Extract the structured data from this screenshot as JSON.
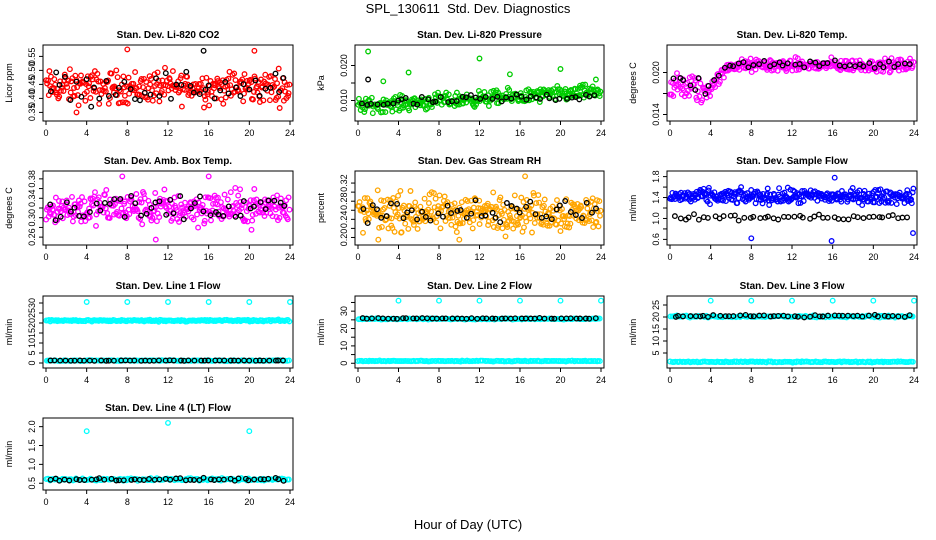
{
  "title": "SPL_130611  Std. Dev. Diagnostics",
  "xlabel": "Hour of Day (UTC)",
  "colors": {
    "red": "#ff0000",
    "green": "#00cc00",
    "magenta": "#ff00ff",
    "orange": "#ffa500",
    "blue": "#0000ff",
    "cyan": "#00ffff",
    "black": "#000000"
  },
  "chart_data": [
    {
      "type": "scatter",
      "title": "Stan. Dev. Li-820 CO2",
      "ylabel": "Licor ppm",
      "xlim": [
        0,
        24
      ],
      "ylim": [
        0.33,
        0.58
      ],
      "xticks": [
        0,
        4,
        8,
        12,
        16,
        20,
        24
      ],
      "yticks": [
        0.35,
        0.4,
        0.45,
        0.5,
        0.55
      ],
      "ytick_labels": [
        "0.35",
        "0.40",
        "0.45",
        "0.50",
        "0.55"
      ],
      "series": [
        {
          "color": "red",
          "points": 300,
          "x_range": [
            0,
            24
          ],
          "y_center": 0.44,
          "y_spread": 0.05,
          "outliers": [
            [
              8.0,
              0.575
            ],
            [
              20.5,
              0.57
            ],
            [
              3.0,
              0.35
            ]
          ]
        },
        {
          "color": "black",
          "points": 48,
          "x_range": [
            0.3,
            23.8
          ],
          "y_center": 0.44,
          "y_spread": 0.05,
          "outliers": [
            [
              15.5,
              0.57
            ]
          ]
        }
      ]
    },
    {
      "type": "scatter",
      "title": "Stan. Dev. Li-820 Pressure",
      "ylabel": "kPa",
      "xlim": [
        0,
        24
      ],
      "ylim": [
        0.005,
        0.025
      ],
      "xticks": [
        0,
        4,
        8,
        12,
        16,
        20,
        24
      ],
      "yticks": [
        0.01,
        0.015,
        0.02
      ],
      "ytick_labels": [
        "0.010",
        "",
        "0.020"
      ],
      "series": [
        {
          "color": "green",
          "points": 320,
          "x_range": [
            0,
            24
          ],
          "y_center_start": 0.0085,
          "y_center_end": 0.0125,
          "y_spread": 0.0018,
          "outliers": [
            [
              1.0,
              0.024
            ],
            [
              2.5,
              0.0155
            ],
            [
              5.0,
              0.018
            ],
            [
              12.0,
              0.022
            ],
            [
              15.0,
              0.0175
            ],
            [
              20.0,
              0.019
            ],
            [
              23.5,
              0.016
            ]
          ]
        },
        {
          "color": "black",
          "points": 48,
          "x_range": [
            0.3,
            23.8
          ],
          "y_center_start": 0.009,
          "y_center_end": 0.0115,
          "y_spread": 0.0012,
          "outliers": [
            [
              1.0,
              0.016
            ]
          ]
        }
      ]
    },
    {
      "type": "scatter",
      "title": "Stan. Dev. Li-820 Temp.",
      "ylabel": "degrees C",
      "xlim": [
        0,
        24
      ],
      "ylim": [
        0.0135,
        0.0235
      ],
      "xticks": [
        0,
        4,
        8,
        12,
        16,
        20,
        24
      ],
      "yticks": [
        0.014,
        0.017,
        0.02
      ],
      "ytick_labels": [
        "0.014",
        "",
        "0.020"
      ],
      "series": [
        {
          "color": "magenta",
          "points": 300,
          "x_range": [
            0,
            24
          ],
          "profile": "rise",
          "y_low": 0.0165,
          "y_high": 0.021,
          "y_spread": 0.0008
        },
        {
          "color": "black",
          "points": 48,
          "x_range": [
            0.3,
            23.8
          ],
          "profile": "rise",
          "y_low": 0.0175,
          "y_high": 0.0212,
          "y_spread": 0.0005
        }
      ]
    },
    {
      "type": "scatter",
      "title": "Stan. Dev. Amb. Box Temp.",
      "ylabel": "degrees C",
      "xlim": [
        0,
        24
      ],
      "ylim": [
        0.25,
        0.39
      ],
      "xticks": [
        0,
        4,
        8,
        12,
        16,
        20,
        24
      ],
      "yticks": [
        0.26,
        0.28,
        0.3,
        0.32,
        0.34,
        0.36,
        0.38
      ],
      "ytick_labels": [
        "0.26",
        "",
        "0.30",
        "",
        "0.34",
        "",
        "0.38"
      ],
      "series": [
        {
          "color": "magenta",
          "points": 320,
          "x_range": [
            0,
            24
          ],
          "y_center": 0.32,
          "y_spread": 0.03,
          "outliers": [
            [
              10.8,
              0.255
            ],
            [
              7.5,
              0.385
            ],
            [
              16.0,
              0.385
            ]
          ]
        },
        {
          "color": "black",
          "points": 48,
          "x_range": [
            0.3,
            23.8
          ],
          "y_center": 0.322,
          "y_spread": 0.025
        }
      ]
    },
    {
      "type": "scatter",
      "title": "Stan. Dev. Gas Stream RH",
      "ylabel": "percent",
      "xlim": [
        0,
        24
      ],
      "ylim": [
        0.19,
        0.34
      ],
      "xticks": [
        0,
        4,
        8,
        12,
        16,
        20,
        24
      ],
      "yticks": [
        0.2,
        0.22,
        0.24,
        0.26,
        0.28,
        0.3,
        0.32
      ],
      "ytick_labels": [
        "0.20",
        "",
        "0.24",
        "",
        "0.28",
        "",
        "0.32"
      ],
      "series": [
        {
          "color": "orange",
          "points": 340,
          "x_range": [
            0,
            24
          ],
          "y_center": 0.255,
          "y_spread": 0.035,
          "outliers": [
            [
              16.5,
              0.335
            ],
            [
              2.0,
              0.195
            ],
            [
              10.0,
              0.195
            ]
          ]
        },
        {
          "color": "black",
          "points": 48,
          "x_range": [
            0.3,
            23.8
          ],
          "y_center": 0.258,
          "y_spread": 0.02
        }
      ]
    },
    {
      "type": "scatter",
      "title": "Stan. Dev. Sample Flow",
      "ylabel": "ml/min",
      "xlim": [
        0,
        24
      ],
      "ylim": [
        0.55,
        1.85
      ],
      "xticks": [
        0,
        4,
        8,
        12,
        16,
        20,
        24
      ],
      "yticks": [
        0.6,
        0.8,
        1.0,
        1.2,
        1.4,
        1.6,
        1.8
      ],
      "ytick_labels": [
        "0.6",
        "",
        "1.0",
        "",
        "1.4",
        "",
        "1.8"
      ],
      "series": [
        {
          "color": "blue",
          "points": 320,
          "x_range": [
            0,
            24
          ],
          "y_center": 1.42,
          "y_spread": 0.12,
          "outliers": [
            [
              8.0,
              0.62
            ],
            [
              15.9,
              0.57
            ],
            [
              23.9,
              0.72
            ],
            [
              16.2,
              1.78
            ]
          ]
        },
        {
          "color": "black",
          "points": 48,
          "x_range": [
            0.3,
            23.8
          ],
          "y_center": 1.02,
          "y_spread": 0.05
        }
      ]
    },
    {
      "type": "scatter",
      "title": "Stan. Dev. Line 1 Flow",
      "ylabel": "ml/min",
      "xlim": [
        0,
        24
      ],
      "ylim": [
        -1,
        32
      ],
      "xticks": [
        0,
        4,
        8,
        12,
        16,
        20,
        24
      ],
      "yticks": [
        0,
        5,
        10,
        15,
        20,
        25,
        30
      ],
      "ytick_labels": [
        "0",
        "5",
        "10",
        "15",
        "20",
        "25",
        "30"
      ],
      "series": [
        {
          "color": "cyan",
          "points": 200,
          "x_range": [
            0,
            24
          ],
          "y_center": 21.2,
          "y_spread": 0.4,
          "outliers": [
            [
              4,
              30.5
            ],
            [
              8,
              30.5
            ],
            [
              12,
              30.5
            ],
            [
              16,
              30.5
            ],
            [
              20,
              30.5
            ],
            [
              24,
              30.5
            ]
          ]
        },
        {
          "color": "cyan",
          "points": 150,
          "x_range": [
            0,
            24
          ],
          "y_center": 1.2,
          "y_spread": 0.2
        },
        {
          "color": "black",
          "points": 48,
          "x_range": [
            0.3,
            23.8
          ],
          "y_center": 1.2,
          "y_spread": 0.1
        }
      ]
    },
    {
      "type": "scatter",
      "title": "Stan. Dev. Line 2 Flow",
      "ylabel": "ml/min",
      "xlim": [
        0,
        24
      ],
      "ylim": [
        -1,
        37
      ],
      "xticks": [
        0,
        4,
        8,
        12,
        16,
        20,
        24
      ],
      "yticks": [
        0,
        5,
        10,
        15,
        20,
        25,
        30,
        35
      ],
      "ytick_labels": [
        "0",
        "",
        "10",
        "",
        "20",
        "",
        "30",
        ""
      ],
      "series": [
        {
          "color": "cyan",
          "points": 150,
          "x_range": [
            0,
            24
          ],
          "y_center": 25.5,
          "y_spread": 0.3,
          "outliers": [
            [
              4,
              36
            ],
            [
              8,
              36
            ],
            [
              12,
              36
            ],
            [
              16,
              36
            ],
            [
              20,
              36
            ],
            [
              24,
              36
            ]
          ]
        },
        {
          "color": "cyan",
          "points": 150,
          "x_range": [
            0,
            24
          ],
          "y_center": 1.3,
          "y_spread": 0.2
        },
        {
          "color": "black",
          "points": 48,
          "x_range": [
            0.3,
            23.8
          ],
          "y_center": 25.8,
          "y_spread": 0.2
        }
      ]
    },
    {
      "type": "scatter",
      "title": "Stan. Dev. Line 3 Flow",
      "ylabel": "ml/min",
      "xlim": [
        0,
        24
      ],
      "ylim": [
        0,
        27.5
      ],
      "xticks": [
        0,
        4,
        8,
        12,
        16,
        20,
        24
      ],
      "yticks": [
        5,
        10,
        15,
        20,
        25
      ],
      "ytick_labels": [
        "5",
        "10",
        "15",
        "20",
        "25"
      ],
      "series": [
        {
          "color": "cyan",
          "points": 150,
          "x_range": [
            0,
            24
          ],
          "y_center": 20.2,
          "y_spread": 0.3,
          "outliers": [
            [
              4,
              26.8
            ],
            [
              8,
              26.8
            ],
            [
              12,
              26.8
            ],
            [
              16,
              26.8
            ],
            [
              20,
              26.8
            ],
            [
              24,
              26.8
            ]
          ]
        },
        {
          "color": "cyan",
          "points": 150,
          "x_range": [
            0,
            24
          ],
          "y_center": 1.3,
          "y_spread": 0.2
        },
        {
          "color": "black",
          "points": 48,
          "x_range": [
            0.3,
            23.8
          ],
          "y_center": 20.4,
          "y_spread": 0.35
        }
      ]
    },
    {
      "type": "scatter",
      "title": "Stan. Dev. Line 4 (LT) Flow",
      "ylabel": "ml/min",
      "xlim": [
        0,
        24
      ],
      "ylim": [
        0.4,
        2.15
      ],
      "xticks": [
        0,
        4,
        8,
        12,
        16,
        20,
        24
      ],
      "yticks": [
        0.5,
        1.0,
        1.5,
        2.0
      ],
      "ytick_labels": [
        "0.5",
        "1.0",
        "1.5",
        "2.0"
      ],
      "series": [
        {
          "color": "cyan",
          "points": 150,
          "x_range": [
            0,
            24
          ],
          "y_center": 0.6,
          "y_spread": 0.03,
          "outliers": [
            [
              4,
              1.88
            ],
            [
              12,
              2.1
            ],
            [
              20,
              1.88
            ]
          ]
        },
        {
          "color": "black",
          "points": 48,
          "x_range": [
            0.3,
            23.8
          ],
          "y_center": 0.6,
          "y_spread": 0.03
        }
      ]
    }
  ]
}
